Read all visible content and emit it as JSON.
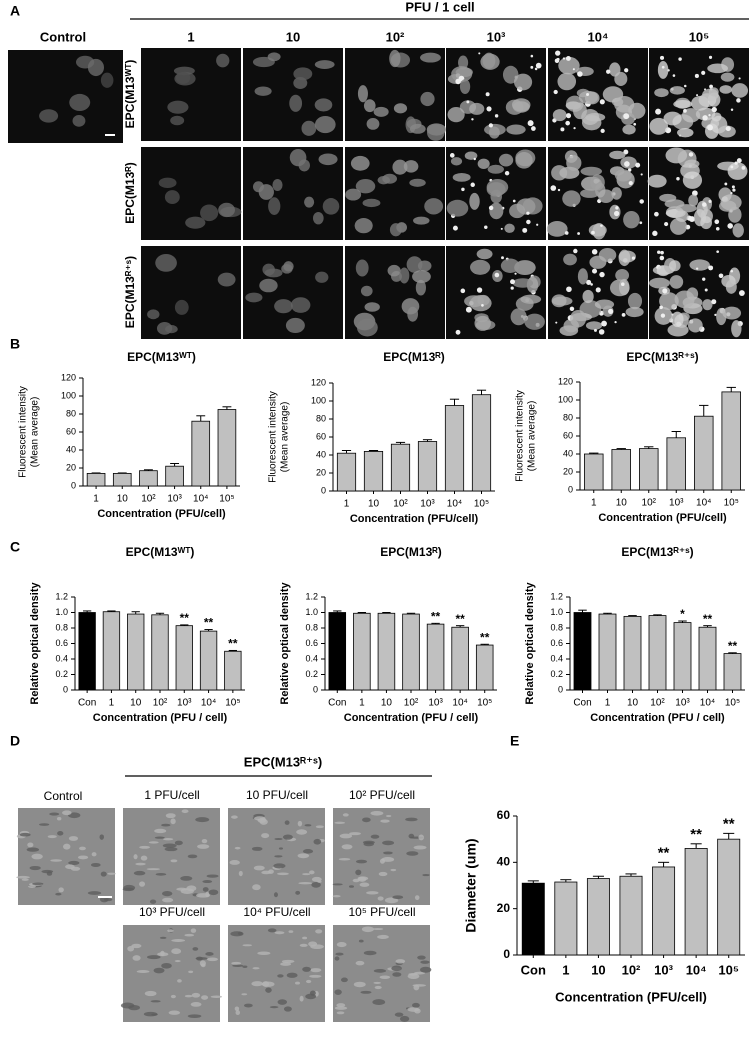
{
  "panel_a": {
    "label": "A",
    "header": "PFU / 1 cell",
    "control": "Control",
    "columns": [
      "1",
      "10",
      "10²",
      "10³",
      "10⁴",
      "10⁵"
    ],
    "rows": [
      "EPC(M13ᵂᵀ)",
      "EPC(M13ᴿ)",
      "EPC(M13ᴿ⁺ˢ)"
    ]
  },
  "panel_d": {
    "label": "D",
    "header": "EPC(M13ᴿ⁺ˢ)",
    "control": "Control",
    "images": [
      "1 PFU/cell",
      "10 PFU/cell",
      "10² PFU/cell",
      "10³ PFU/cell",
      "10⁴ PFU/cell",
      "10⁵ PFU/cell"
    ]
  },
  "chart_data": [
    {
      "type": "bar",
      "label": "B",
      "title": "EPC(M13ᵂᵀ)",
      "ylabel": [
        "Fluorescent intensity",
        "(Mean average)"
      ],
      "xlabel": "Concentration (PFU/cell)",
      "categories": [
        "1",
        "10",
        "10²",
        "10³",
        "10⁴",
        "10⁵"
      ],
      "values": [
        14,
        14,
        17,
        22,
        72,
        85
      ],
      "errors": [
        0.5,
        0.5,
        1,
        3,
        6,
        3
      ],
      "color": "#c0c0c0",
      "ylim": [
        0,
        120
      ],
      "yticks": [
        0,
        20,
        40,
        60,
        80,
        100,
        120
      ]
    },
    {
      "type": "bar",
      "title": "EPC(M13ᴿ)",
      "ylabel": [
        "Fluorescent intensity",
        "(Mean average)"
      ],
      "xlabel": "Concentration (PFU/cell)",
      "categories": [
        "1",
        "10",
        "10²",
        "10³",
        "10⁴",
        "10⁵"
      ],
      "values": [
        42,
        44,
        52,
        55,
        95,
        107
      ],
      "errors": [
        3,
        1,
        2,
        2,
        7,
        5
      ],
      "color": "#c0c0c0",
      "ylim": [
        0,
        120
      ],
      "yticks": [
        0,
        20,
        40,
        60,
        80,
        100,
        120
      ]
    },
    {
      "type": "bar",
      "title": "EPC(M13ᴿ⁺ˢ)",
      "ylabel": [
        "Fluorescent intensity",
        "(Mean average)"
      ],
      "xlabel": "Concentration (PFU/cell)",
      "categories": [
        "1",
        "10",
        "10²",
        "10³",
        "10⁴",
        "10⁵"
      ],
      "values": [
        40,
        45,
        46,
        58,
        82,
        109
      ],
      "errors": [
        1,
        1,
        2,
        7,
        12,
        5
      ],
      "color": "#c0c0c0",
      "ylim": [
        0,
        120
      ],
      "yticks": [
        0,
        20,
        40,
        60,
        80,
        100,
        120
      ]
    },
    {
      "type": "bar",
      "label": "C",
      "title": "EPC(M13ᵂᵀ)",
      "ylabel": "Relative optical density",
      "xlabel": "Concentration (PFU / cell)",
      "categories": [
        "Con",
        "1",
        "10",
        "10²",
        "10³",
        "10⁴",
        "10⁵"
      ],
      "values": [
        1.0,
        1.01,
        0.98,
        0.97,
        0.83,
        0.76,
        0.5
      ],
      "errors": [
        0.02,
        0.01,
        0.03,
        0.02,
        0.01,
        0.02,
        0.01
      ],
      "annotations": [
        null,
        null,
        null,
        null,
        "**",
        "**",
        "**"
      ],
      "colors": [
        "#000000",
        "#c0c0c0",
        "#c0c0c0",
        "#c0c0c0",
        "#c0c0c0",
        "#c0c0c0",
        "#c0c0c0"
      ],
      "ylim": [
        0,
        1.2
      ],
      "yticks": [
        0,
        0.2,
        0.4,
        0.6,
        0.8,
        {
          "value": 1,
          "label": "1.0"
        },
        1.2
      ]
    },
    {
      "type": "bar",
      "title": "EPC(M13ᴿ)",
      "ylabel": "Relative optical density",
      "xlabel": "Concentration (PFU / cell)",
      "categories": [
        "Con",
        "1",
        "10",
        "10²",
        "10³",
        "10⁴",
        "10⁵"
      ],
      "values": [
        1.0,
        0.99,
        0.99,
        0.98,
        0.85,
        0.81,
        0.58
      ],
      "errors": [
        0.02,
        0.01,
        0.01,
        0.01,
        0.01,
        0.02,
        0.01
      ],
      "annotations": [
        null,
        null,
        null,
        null,
        "**",
        "**",
        "**"
      ],
      "colors": [
        "#000000",
        "#c0c0c0",
        "#c0c0c0",
        "#c0c0c0",
        "#c0c0c0",
        "#c0c0c0",
        "#c0c0c0"
      ],
      "ylim": [
        0,
        1.2
      ],
      "yticks": [
        0,
        0.2,
        0.4,
        0.6,
        0.8,
        {
          "value": 1,
          "label": "1.0"
        },
        1.2
      ]
    },
    {
      "type": "bar",
      "title": "EPC(M13ᴿ⁺ˢ)",
      "ylabel": "Relative optical density",
      "xlabel": "Concentration (PFU / cell)",
      "categories": [
        "Con",
        "1",
        "10",
        "10²",
        "10³",
        "10⁴",
        "10⁵"
      ],
      "values": [
        1.0,
        0.98,
        0.95,
        0.96,
        0.87,
        0.81,
        0.47
      ],
      "errors": [
        0.03,
        0.01,
        0.01,
        0.01,
        0.02,
        0.02,
        0.01
      ],
      "annotations": [
        null,
        null,
        null,
        null,
        "*",
        "**",
        "**"
      ],
      "colors": [
        "#000000",
        "#c0c0c0",
        "#c0c0c0",
        "#c0c0c0",
        "#c0c0c0",
        "#c0c0c0",
        "#c0c0c0"
      ],
      "ylim": [
        0,
        1.2
      ],
      "yticks": [
        0,
        0.2,
        0.4,
        0.6,
        0.8,
        {
          "value": 1,
          "label": "1.0"
        },
        1.2
      ]
    },
    {
      "type": "bar",
      "label": "E",
      "ylabel": "Diameter (um)",
      "xlabel": "Concentration (PFU/cell)",
      "categories": [
        "Con",
        "1",
        "10",
        "10²",
        "10³",
        "10⁴",
        "10⁵"
      ],
      "values": [
        31,
        31.5,
        33,
        34,
        38,
        46,
        50
      ],
      "errors": [
        1,
        1,
        1,
        1,
        2,
        2,
        2.5
      ],
      "annotations": [
        null,
        null,
        null,
        null,
        "**",
        "**",
        "**"
      ],
      "colors": [
        "#000000",
        "#c0c0c0",
        "#c0c0c0",
        "#c0c0c0",
        "#c0c0c0",
        "#c0c0c0",
        "#c0c0c0"
      ],
      "ylim": [
        0,
        60
      ],
      "yticks": [
        0,
        20,
        40,
        60
      ]
    }
  ]
}
